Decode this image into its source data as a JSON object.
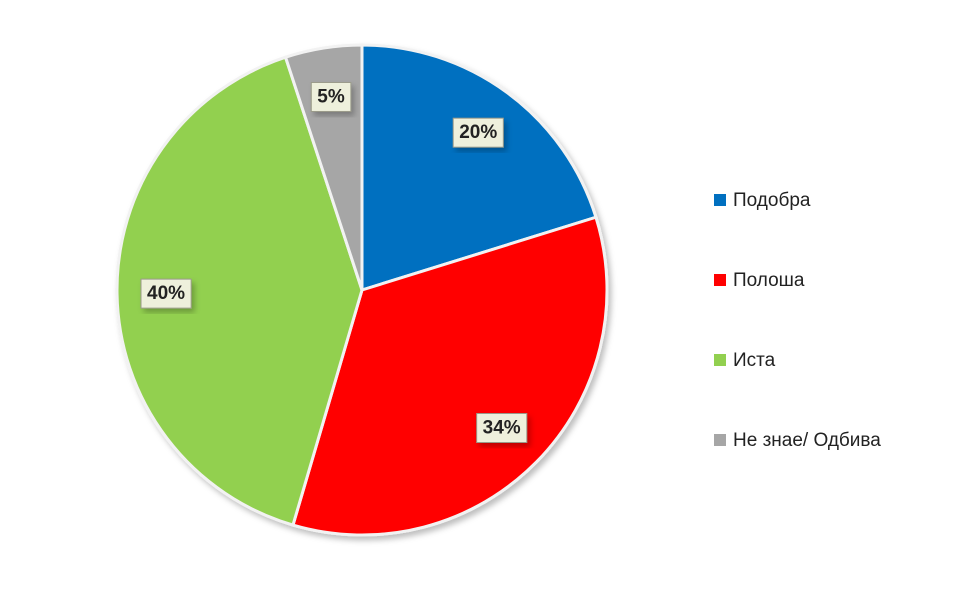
{
  "chart_data": {
    "type": "pie",
    "categories": [
      "Подобра",
      "Полоша",
      "Иста",
      "Не знае/ Одбива"
    ],
    "values": [
      20,
      34,
      40,
      5
    ],
    "value_labels": [
      "20%",
      "34%",
      "40%",
      "5%"
    ],
    "colors": [
      "#0070c0",
      "#ff0000",
      "#92d050",
      "#a6a6a6"
    ],
    "legend": "right"
  }
}
